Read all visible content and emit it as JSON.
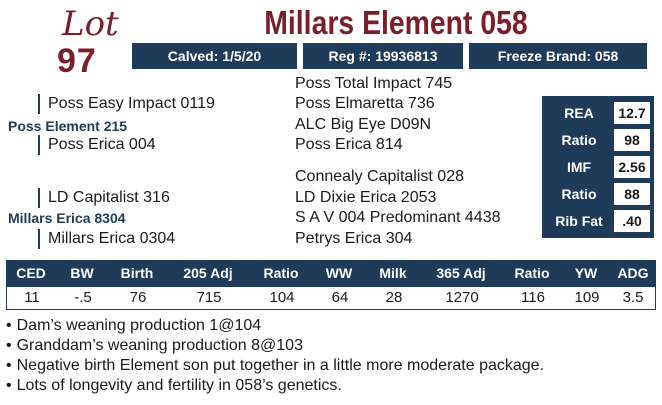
{
  "lot": {
    "label": "Lot",
    "number": "97"
  },
  "title": "Millars Element 058",
  "info": {
    "calved": "Calved: 1/5/20",
    "reg": "Reg #: 19936813",
    "freeze_brand": "Freeze Brand: 058"
  },
  "pedigree": {
    "sire_side": {
      "sire_sire": "Poss Easy Impact 0119",
      "sire": "Poss Element 215",
      "sire_dam": "Poss Erica 004",
      "sss": "Poss Total Impact 745",
      "ssd": "Poss Elmaretta 736",
      "sds": "ALC Big Eye D09N",
      "sdd": "Poss Erica 814"
    },
    "dam_side": {
      "dam_sire": "LD Capitalist 316",
      "dam": "Millars Erica 8304",
      "dam_dam": "Millars Erica 0304",
      "dss": "Connealy Capitalist 028",
      "dsd": "LD Dixie Erica 2053",
      "dds": "S A V 004 Predominant 4438",
      "ddd": "Petrys Erica 304"
    }
  },
  "carcass": [
    {
      "label": "REA",
      "value": "12.7"
    },
    {
      "label": "Ratio",
      "value": "98"
    },
    {
      "label": "IMF",
      "value": "2.56"
    },
    {
      "label": "Ratio",
      "value": "88"
    },
    {
      "label": "Rib Fat",
      "value": ".40"
    }
  ],
  "epd": {
    "headers": [
      "CED",
      "BW",
      "Birth",
      "205 Adj",
      "Ratio",
      "WW",
      "Milk",
      "365 Adj",
      "Ratio",
      "YW",
      "ADG"
    ],
    "values": [
      "11",
      "-.5",
      "76",
      "715",
      "104",
      "64",
      "28",
      "1270",
      "116",
      "109",
      "3.5"
    ]
  },
  "notes": [
    "Dam’s weaning production 1@104",
    "Granddam’s weaning production 8@103",
    "Negative birth Element son put together in a little more moderate package.",
    "Lots of longevity and fertility in 058’s genetics."
  ],
  "colors": {
    "navy": "#1f3b5a",
    "maroon": "#7a1e2c"
  }
}
